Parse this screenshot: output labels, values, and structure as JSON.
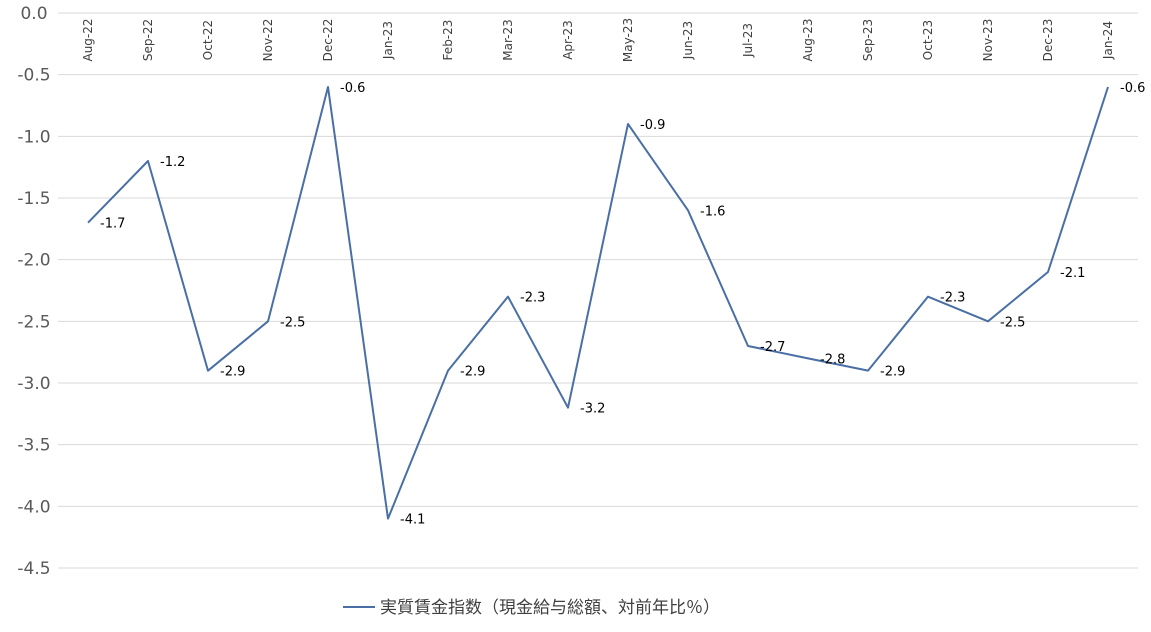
{
  "chart_data": {
    "type": "line",
    "categories": [
      "Aug-22",
      "Sep-22",
      "Oct-22",
      "Nov-22",
      "Dec-22",
      "Jan-23",
      "Feb-23",
      "Mar-23",
      "Apr-23",
      "May-23",
      "Jun-23",
      "Jul-23",
      "Aug-23",
      "Sep-23",
      "Oct-23",
      "Nov-23",
      "Dec-23",
      "Jan-24"
    ],
    "series": [
      {
        "name": "実質賃金指数（現金給与総額、対前年比％）",
        "values": [
          -1.7,
          -1.2,
          -2.9,
          -2.5,
          -0.6,
          -4.1,
          -2.9,
          -2.3,
          -3.2,
          -0.9,
          -1.6,
          -2.7,
          -2.8,
          -2.9,
          -2.3,
          -2.5,
          -2.1,
          -0.6
        ],
        "data_labels": [
          "-1.7",
          "-1.2",
          "-2.9",
          "-2.5",
          "-0.6",
          "-4.1",
          "-2.9",
          "-2.3",
          "-3.2",
          "-0.9",
          "-1.6",
          "-2.7",
          "-2.8",
          "-2.9",
          "-2.3",
          "-2.5",
          "-2.1",
          "-0.6"
        ],
        "color": "#4a6fa5"
      }
    ],
    "y_ticks": [
      "0.0",
      "-0.5",
      "-1.0",
      "-1.5",
      "-2.0",
      "-2.5",
      "-3.0",
      "-3.5",
      "-4.0",
      "-4.5"
    ],
    "ylim": [
      -4.5,
      0.0
    ],
    "grid": true,
    "x_axis_position": "top",
    "legend_position": "bottom",
    "title": "",
    "xlabel": "",
    "ylabel": ""
  }
}
